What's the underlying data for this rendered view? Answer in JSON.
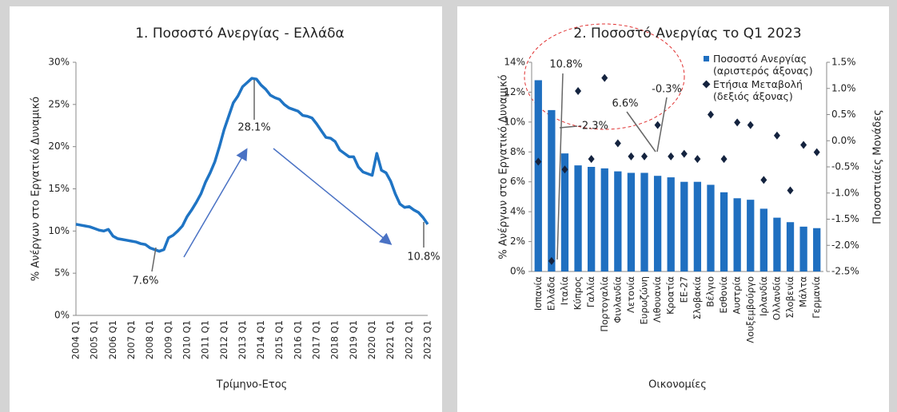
{
  "chart_data": [
    {
      "type": "line",
      "title": "1. Ποσοστό Ανεργίας - Ελλάδα",
      "ylabel": "% Ανέργων στο Εργατικό Δυναμικό",
      "xlabel": "Τρίμηνο-Ετος",
      "categories": [
        "2004 Q1",
        null,
        null,
        null,
        "2005 Q1",
        null,
        null,
        null,
        "2006 Q1",
        null,
        null,
        null,
        "2007 Q1",
        null,
        null,
        null,
        "2008 Q1",
        null,
        null,
        null,
        "2009 Q1",
        null,
        null,
        null,
        "2010 Q1",
        null,
        null,
        null,
        "2011 Q1",
        null,
        null,
        null,
        "2012 Q1",
        null,
        null,
        null,
        "2013 Q1",
        null,
        null,
        null,
        "2014 Q1",
        null,
        null,
        null,
        "2015 Q1",
        null,
        null,
        null,
        "2016 Q1",
        null,
        null,
        null,
        "2017 Q1",
        null,
        null,
        null,
        "2018 Q1",
        null,
        null,
        null,
        "2019 Q1",
        null,
        null,
        null,
        "2020 Q1",
        null,
        null,
        null,
        "2021 Q1",
        null,
        null,
        null,
        "2022 Q1",
        null,
        null,
        null,
        "2023 Q1"
      ],
      "series": [
        {
          "name": "Ελλάδα",
          "color": "#1f74c4",
          "values": [
            10.8,
            10.7,
            10.6,
            10.5,
            10.3,
            10.1,
            10.0,
            10.2,
            9.4,
            9.1,
            9.0,
            8.9,
            8.8,
            8.7,
            8.5,
            8.4,
            8.0,
            7.8,
            7.6,
            7.8,
            9.2,
            9.5,
            10.0,
            10.6,
            11.7,
            12.5,
            13.4,
            14.4,
            15.8,
            16.9,
            18.2,
            20.0,
            22.0,
            23.6,
            25.2,
            26.0,
            27.1,
            27.6,
            28.1,
            28.0,
            27.3,
            26.8,
            26.1,
            25.8,
            25.6,
            25.0,
            24.6,
            24.4,
            24.2,
            23.7,
            23.6,
            23.4,
            22.7,
            21.9,
            21.1,
            21.0,
            20.6,
            19.6,
            19.2,
            18.8,
            18.8,
            17.6,
            17.0,
            16.8,
            16.6,
            19.2,
            17.2,
            16.9,
            15.9,
            14.4,
            13.2,
            12.8,
            12.9,
            12.5,
            12.2,
            11.6,
            10.8
          ]
        }
      ],
      "ylim": [
        0,
        30
      ],
      "yticks": [
        {
          "value": 0,
          "label": "0%"
        },
        {
          "value": 5,
          "label": "5%"
        },
        {
          "value": 10,
          "label": "10%"
        },
        {
          "value": 15,
          "label": "15%"
        },
        {
          "value": 20,
          "label": "20%"
        },
        {
          "value": 25,
          "label": "25%"
        },
        {
          "value": 30,
          "label": "30%"
        }
      ],
      "annotations": [
        "28.1%",
        "7.6%",
        "10.8%"
      ]
    },
    {
      "type": "bar",
      "title": "2. Ποσοστό Ανεργίας το Q1 2023",
      "ylabel": "% Ανέργων στο Εργατικό Δυναμικό",
      "y2label": "Ποσοστιαίες Μονάδες",
      "xlabel": "Οικονομίες",
      "categories": [
        "Ισπανία",
        "Ελλάδα",
        "Ιταλία",
        "Κύπρος",
        "Γαλλία",
        "Πορτογαλία",
        "Φινλανδία",
        "Λετονία",
        "Ευρωζώνη",
        "Λιθουανία",
        "Κροατία",
        "ΕΕ-27",
        "Σλοβακία",
        "Βέλγιο",
        "Εσθονία",
        "Αυστρία",
        "Λουξεμβούργο",
        "Ιρλανδία",
        "Ολλανδία",
        "Σλοβενία",
        "Μάλτα",
        "Γερμανία"
      ],
      "series": [
        {
          "name": "Ποσοστό Ανεργίας (αριστερός άξονας)",
          "type": "bar",
          "color": "#1f6fc0",
          "values": [
            12.8,
            10.8,
            7.9,
            7.1,
            7.0,
            6.9,
            6.7,
            6.6,
            6.6,
            6.4,
            6.3,
            6.0,
            6.0,
            5.8,
            5.3,
            4.9,
            4.8,
            4.2,
            3.6,
            3.3,
            3.0,
            2.9
          ]
        },
        {
          "name": "Ετήσια Μεταβολή (δεξιός άξονας)",
          "type": "scatter",
          "axis": "y2",
          "color": "#14233f",
          "values": [
            -0.4,
            -2.3,
            -0.55,
            0.95,
            -0.35,
            1.2,
            -0.05,
            -0.3,
            -0.3,
            0.3,
            -0.3,
            -0.25,
            -0.35,
            0.5,
            -0.35,
            0.35,
            0.3,
            -0.75,
            0.1,
            -0.95,
            -0.08,
            -0.22
          ]
        }
      ],
      "ylim": [
        0,
        14
      ],
      "yticks": [
        {
          "value": 0,
          "label": "0%"
        },
        {
          "value": 2,
          "label": "2%"
        },
        {
          "value": 4,
          "label": "4%"
        },
        {
          "value": 6,
          "label": "6%"
        },
        {
          "value": 8,
          "label": "8%"
        },
        {
          "value": 10,
          "label": "10%"
        },
        {
          "value": 12,
          "label": "12%"
        },
        {
          "value": 14,
          "label": "14%"
        }
      ],
      "y2lim": [
        -2.5,
        1.5
      ],
      "y2ticks": [
        {
          "value": -2.5,
          "label": "-2.5%"
        },
        {
          "value": -2.0,
          "label": "-2.0%"
        },
        {
          "value": -1.5,
          "label": "-1.5%"
        },
        {
          "value": -1.0,
          "label": "-1.0%"
        },
        {
          "value": -0.5,
          "label": "-0.5%"
        },
        {
          "value": 0,
          "label": "0.0%"
        },
        {
          "value": 0.5,
          "label": "0.5%"
        },
        {
          "value": 1.0,
          "label": "1.0%"
        },
        {
          "value": 1.5,
          "label": "1.5%"
        }
      ],
      "annotations": [
        "10.8%",
        "-2.3%",
        "6.6%",
        "-0.3%"
      ]
    }
  ]
}
